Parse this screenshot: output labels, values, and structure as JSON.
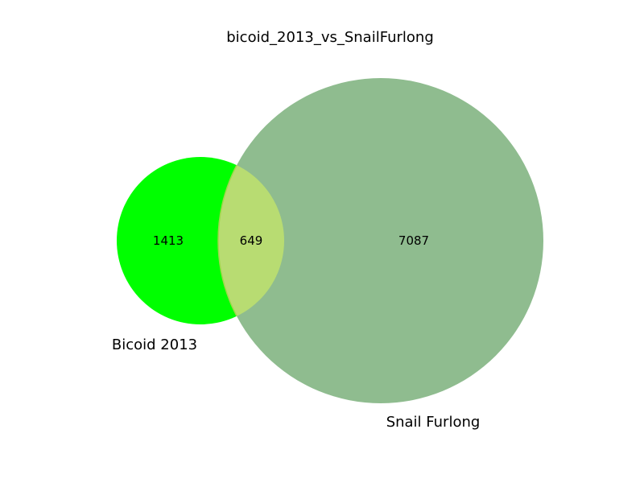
{
  "chart_data": {
    "type": "venn",
    "title": "bicoid_2013_vs_SnailFurlong",
    "sets": [
      {
        "name": "Bicoid 2013",
        "only_count": 1413,
        "color": "#00ff00"
      },
      {
        "name": "Snail Furlong",
        "only_count": 7087,
        "color": "#8fbc8f"
      }
    ],
    "intersection": {
      "count": 649,
      "color": "#b8dc72"
    }
  }
}
